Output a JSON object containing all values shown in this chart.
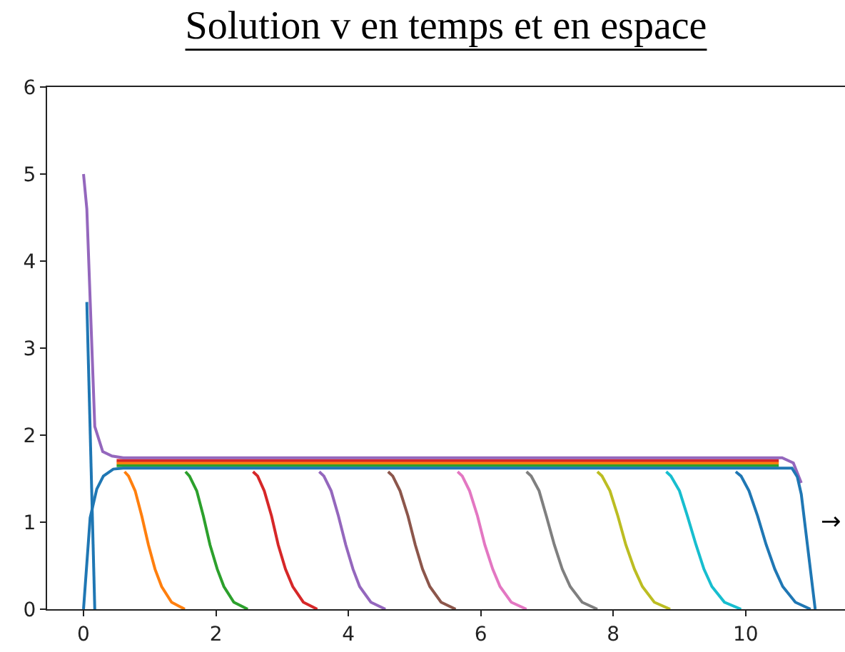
{
  "chart_data": {
    "type": "line",
    "title": "Solution v en temps et en espace",
    "xlim": [
      -0.55,
      11.5
    ],
    "ylim": [
      0,
      6
    ],
    "xticks": [
      0,
      2,
      4,
      6,
      8,
      10
    ],
    "yticks": [
      0,
      1,
      2,
      3,
      4,
      5,
      6
    ],
    "annotations": [
      "→"
    ],
    "series": [
      {
        "color": "#1f77b4",
        "x": [
          0.05,
          0.17
        ],
        "values": [
          3.53,
          0
        ]
      },
      {
        "color": "#ff7f0e",
        "x": [
          0.62,
          0.68,
          0.78,
          0.88,
          0.98,
          1.08,
          1.18,
          1.33,
          1.53
        ],
        "values": [
          1.58,
          1.53,
          1.36,
          1.07,
          0.74,
          0.46,
          0.26,
          0.08,
          0
        ]
      },
      {
        "color": "#2ca02c",
        "x": [
          1.54,
          1.6,
          1.71,
          1.81,
          1.91,
          2.02,
          2.12,
          2.27,
          2.48
        ],
        "values": [
          1.58,
          1.53,
          1.36,
          1.07,
          0.74,
          0.46,
          0.26,
          0.08,
          0
        ]
      },
      {
        "color": "#d62728",
        "x": [
          2.56,
          2.63,
          2.73,
          2.84,
          2.94,
          3.05,
          3.16,
          3.32,
          3.53
        ],
        "values": [
          1.58,
          1.53,
          1.36,
          1.07,
          0.74,
          0.46,
          0.26,
          0.08,
          0
        ]
      },
      {
        "color": "#9467bd",
        "x": [
          3.56,
          3.63,
          3.74,
          3.85,
          3.96,
          4.07,
          4.17,
          4.34,
          4.56
        ],
        "values": [
          1.58,
          1.53,
          1.36,
          1.07,
          0.74,
          0.46,
          0.26,
          0.08,
          0
        ]
      },
      {
        "color": "#8c564b",
        "x": [
          4.6,
          4.67,
          4.78,
          4.9,
          5.01,
          5.12,
          5.23,
          5.4,
          5.62
        ],
        "values": [
          1.58,
          1.53,
          1.36,
          1.07,
          0.74,
          0.46,
          0.26,
          0.08,
          0
        ]
      },
      {
        "color": "#e377c2",
        "x": [
          5.65,
          5.72,
          5.83,
          5.95,
          6.06,
          6.18,
          6.29,
          6.46,
          6.69
        ],
        "values": [
          1.58,
          1.53,
          1.36,
          1.07,
          0.74,
          0.46,
          0.26,
          0.08,
          0
        ]
      },
      {
        "color": "#7f7f7f",
        "x": [
          6.69,
          6.76,
          6.88,
          6.99,
          7.11,
          7.23,
          7.35,
          7.53,
          7.76
        ],
        "values": [
          1.58,
          1.53,
          1.36,
          1.07,
          0.74,
          0.46,
          0.26,
          0.08,
          0
        ]
      },
      {
        "color": "#bcbd22",
        "x": [
          7.76,
          7.83,
          7.95,
          8.07,
          8.19,
          8.32,
          8.44,
          8.62,
          8.86
        ],
        "values": [
          1.58,
          1.53,
          1.36,
          1.07,
          0.74,
          0.46,
          0.26,
          0.08,
          0
        ]
      },
      {
        "color": "#17becf",
        "x": [
          8.8,
          8.87,
          9.0,
          9.12,
          9.25,
          9.37,
          9.49,
          9.68,
          9.93
        ],
        "values": [
          1.58,
          1.53,
          1.36,
          1.07,
          0.74,
          0.46,
          0.26,
          0.08,
          0
        ]
      },
      {
        "color": "#1f77b4",
        "x": [
          9.85,
          9.93,
          10.05,
          10.18,
          10.31,
          10.44,
          10.56,
          10.75,
          10.98
        ],
        "values": [
          1.58,
          1.53,
          1.36,
          1.07,
          0.74,
          0.46,
          0.26,
          0.08,
          0
        ]
      },
      {
        "color": "#2ca02c",
        "x": [
          0.5,
          10.5
        ],
        "values": [
          1.65,
          1.65
        ]
      },
      {
        "color": "#ff7f0e",
        "x": [
          0.5,
          10.5
        ],
        "values": [
          1.68,
          1.68
        ]
      },
      {
        "color": "#d62728",
        "x": [
          0.5,
          10.5
        ],
        "values": [
          1.71,
          1.71
        ]
      },
      {
        "color": "#9467bd",
        "x": [
          0,
          0.05,
          0.17,
          0.29,
          0.43,
          0.6,
          10.55,
          10.72,
          10.84
        ],
        "values": [
          5,
          4.6,
          2.1,
          1.81,
          1.76,
          1.74,
          1.74,
          1.68,
          1.45
        ]
      },
      {
        "color": "#1f77b4",
        "x": [
          0,
          0.1,
          0.2,
          0.3,
          0.45,
          0.6,
          10.7,
          10.78,
          10.84,
          11.05
        ],
        "values": [
          0,
          1.05,
          1.38,
          1.53,
          1.61,
          1.62,
          1.62,
          1.52,
          1.32,
          0
        ]
      }
    ]
  }
}
